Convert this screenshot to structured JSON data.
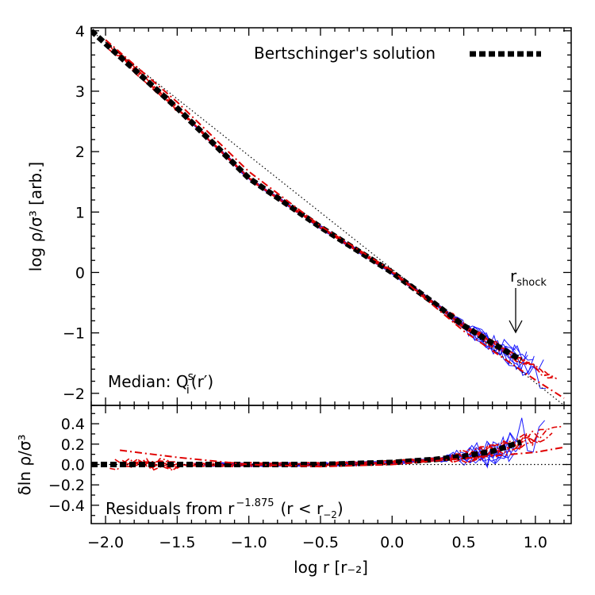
{
  "chart_data": [
    {
      "type": "line",
      "panel": "top",
      "ylabel": "log ρ/σ³ [arb.]",
      "xlim": [
        -2.1,
        1.25
      ],
      "ylim": [
        -2.2,
        4.05
      ],
      "x_ticks": [
        -2.0,
        -1.5,
        -1.0,
        -0.5,
        0.0,
        0.5,
        1.0
      ],
      "y_ticks": [
        -2,
        -1,
        0,
        1,
        2,
        3,
        4
      ],
      "y_tick_labels": [
        "−2",
        "−1",
        "0",
        "1",
        "2",
        "3",
        "4"
      ],
      "legend": {
        "label": "Bertschinger's solution",
        "placement": "top-right"
      },
      "annotation_text": "Median: Q",
      "annotation_sup": "s",
      "annotation_sub": "i",
      "annotation_arg": "(r′)",
      "arrow_label_main": "r",
      "arrow_label_sub": "shock",
      "arrow_x": 0.92,
      "series": [
        {
          "style": "thick-dotted-black",
          "x": [
            -2.1,
            -1.5,
            -1.0,
            -0.5,
            0.0,
            0.3,
            0.5,
            0.7,
            0.9
          ],
          "y": [
            4.0,
            2.72,
            1.56,
            0.75,
            0.0,
            -0.52,
            -0.88,
            -1.17,
            -1.45
          ]
        },
        {
          "style": "thin-dotted-black",
          "x": [
            -2.1,
            1.2
          ],
          "y": [
            4.0,
            -2.2
          ]
        },
        {
          "style": "red-dashdot",
          "x": [
            -2.0,
            -1.5,
            -1.0,
            -0.5,
            0.0,
            0.5,
            1.0,
            1.2
          ],
          "y": [
            3.85,
            2.82,
            1.67,
            0.77,
            0.03,
            -0.97,
            -1.78,
            -2.08
          ]
        }
      ]
    },
    {
      "type": "line",
      "panel": "bottom",
      "xlabel": "log r [r₋₂]",
      "ylabel": "δln ρ/σ³",
      "xlim": [
        -2.1,
        1.25
      ],
      "ylim": [
        -0.58,
        0.58
      ],
      "x_ticks": [
        -2.0,
        -1.5,
        -1.0,
        -0.5,
        0.0,
        0.5,
        1.0
      ],
      "x_tick_labels": [
        "−2.0",
        "−1.5",
        "−1.0",
        "−0.5",
        "0.0",
        "0.5",
        "1.0"
      ],
      "y_ticks": [
        -0.4,
        -0.2,
        0.0,
        0.2,
        0.4
      ],
      "y_tick_labels": [
        "−0.4",
        "−0.2",
        "0.0",
        "0.2",
        "0.4"
      ],
      "annotation_text": "Residuals from r",
      "annotation_sup": "−1.875",
      "annotation_tail": "(r < r",
      "annotation_tail_sub": "−2",
      "annotation_close": ")",
      "series": [
        {
          "style": "thick-dotted-black",
          "x": [
            -2.1,
            -1.5,
            -1.0,
            -0.5,
            0.0,
            0.3,
            0.5,
            0.7,
            0.9
          ],
          "y": [
            0.0,
            0.0,
            0.0,
            0.0,
            0.02,
            0.05,
            0.08,
            0.13,
            0.22
          ]
        },
        {
          "style": "thin-dotted-black",
          "x": [
            -2.1,
            1.25
          ],
          "y": [
            0.0,
            0.0
          ]
        },
        {
          "style": "red-dashdot",
          "x": [
            -1.9,
            -1.5,
            -1.0,
            -0.5,
            0.0,
            0.5,
            1.0,
            1.2
          ],
          "y": [
            0.14,
            0.07,
            0.0,
            -0.02,
            0.0,
            0.06,
            0.12,
            0.17
          ]
        }
      ]
    }
  ]
}
